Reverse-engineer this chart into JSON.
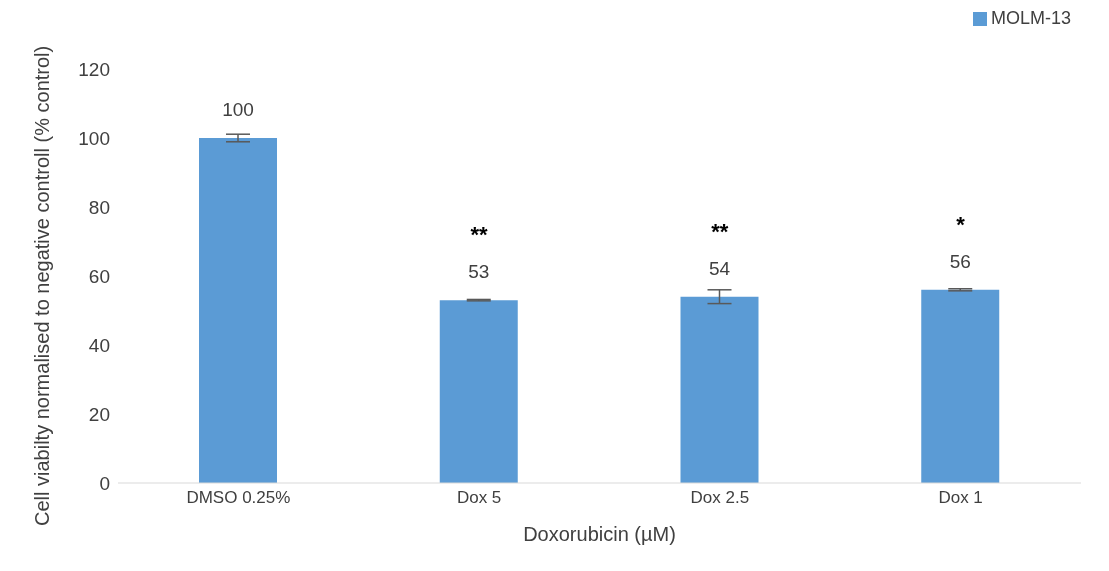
{
  "chart_data": {
    "type": "bar",
    "xlabel": "Doxorubicin (µM)",
    "ylabel": "Cell viabilty normalised to negative controll (% control)",
    "categories": [
      "DMSO 0.25%",
      "Dox 5",
      "Dox 2.5",
      "Dox 1"
    ],
    "series": [
      {
        "name": "MOLM-13",
        "color": "#5b9bd5",
        "values": [
          100,
          53,
          54,
          56
        ],
        "errors": [
          1.1,
          0.2,
          2,
          0.3
        ]
      }
    ],
    "ylim": [
      0,
      120
    ],
    "yticks": [
      0,
      20,
      40,
      60,
      80,
      100,
      120
    ],
    "grid": false,
    "legend": "top right",
    "data_labels": true,
    "annotations": [
      {
        "text": "**",
        "x": "Dox 5",
        "y": 53
      },
      {
        "text": "**",
        "x": "Dox 2.5",
        "y": 54
      },
      {
        "text": "*",
        "x": "Dox 1",
        "y": 56
      }
    ]
  }
}
